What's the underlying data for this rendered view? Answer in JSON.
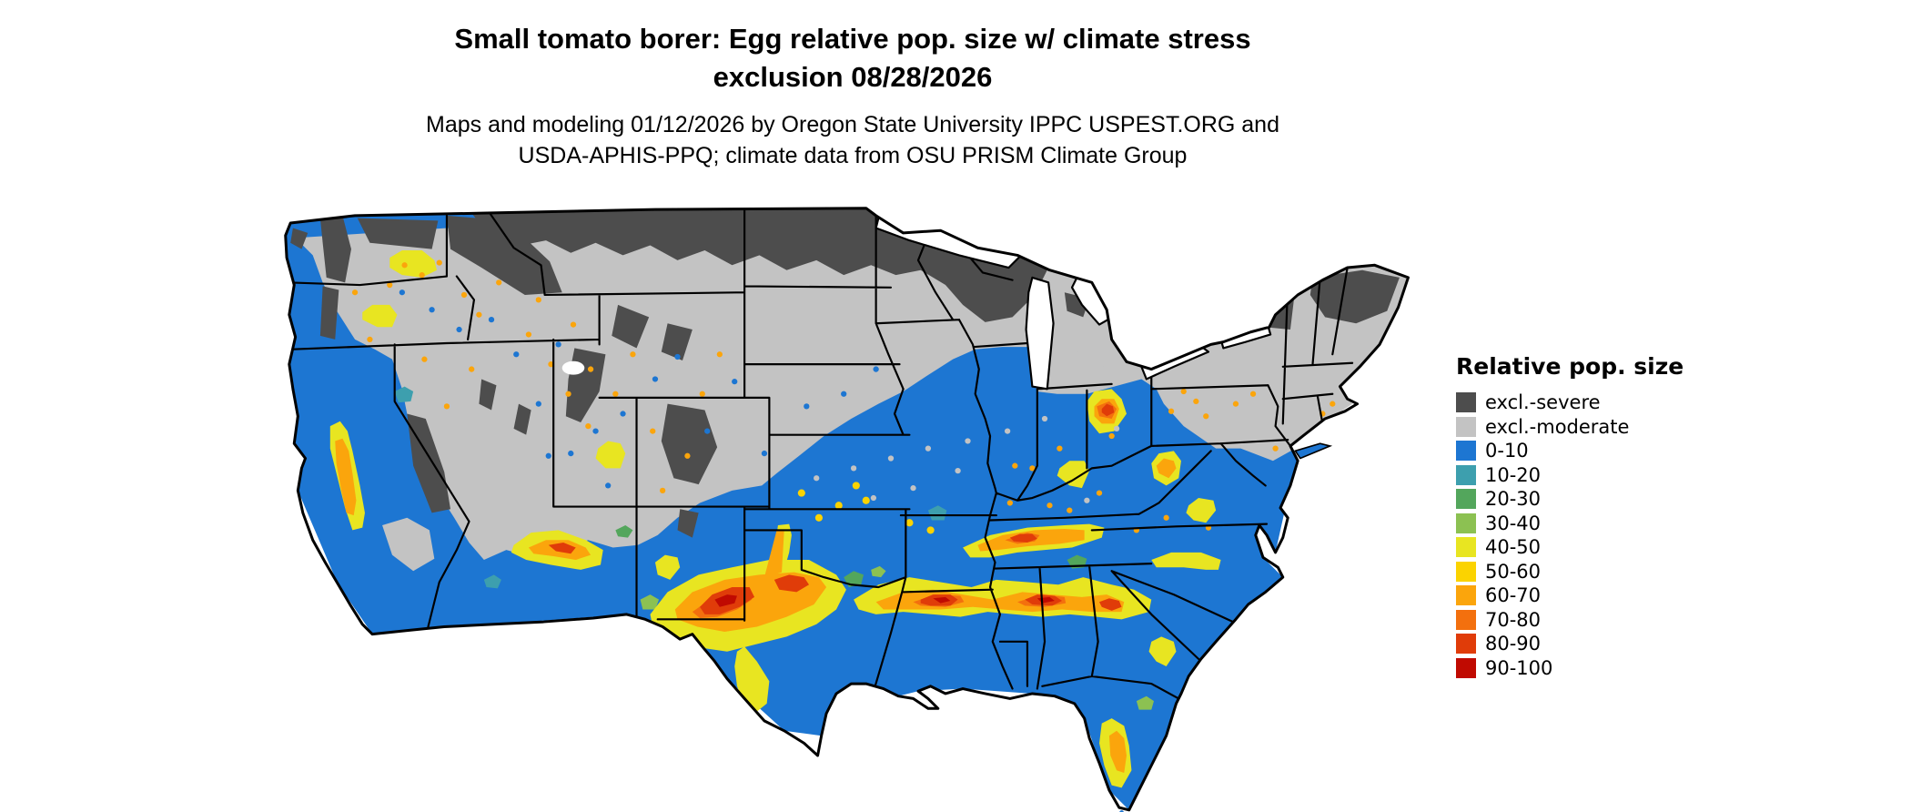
{
  "title": {
    "line1": "Small tomato borer: Egg relative pop. size w/ climate stress",
    "line2": "exclusion 08/28/2026"
  },
  "subtitle": {
    "line1": "Maps and modeling 01/12/2026 by Oregon State University IPPC USPEST.ORG and",
    "line2": "USDA-APHIS-PPQ; climate data from OSU PRISM Climate Group"
  },
  "legend": {
    "title": "Relative pop. size",
    "entries": [
      {
        "key": "excl-severe",
        "label": "excl.-severe",
        "color": "#4D4D4D"
      },
      {
        "key": "excl-moderate",
        "label": "excl.-moderate",
        "color": "#C3C3C3"
      },
      {
        "key": "0-10",
        "label": "0-10",
        "color": "#1D76D2"
      },
      {
        "key": "10-20",
        "label": "10-20",
        "color": "#3D9FAE"
      },
      {
        "key": "20-30",
        "label": "20-30",
        "color": "#53A65C"
      },
      {
        "key": "30-40",
        "label": "30-40",
        "color": "#8CC152"
      },
      {
        "key": "40-50",
        "label": "40-50",
        "color": "#E8E521"
      },
      {
        "key": "50-60",
        "label": "50-60",
        "color": "#FBD300"
      },
      {
        "key": "60-70",
        "label": "60-70",
        "color": "#FBA50C"
      },
      {
        "key": "70-80",
        "label": "70-80",
        "color": "#F3700E"
      },
      {
        "key": "80-90",
        "label": "80-90",
        "color": "#E03C09"
      },
      {
        "key": "90-100",
        "label": "90-100",
        "color": "#C00A01"
      }
    ]
  },
  "map": {
    "region": "Continental United States",
    "water_color": "#FFFFFF",
    "border_color": "#000000"
  }
}
